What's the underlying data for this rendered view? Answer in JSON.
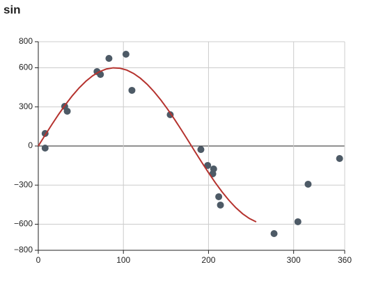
{
  "chart_data": {
    "type": "scatter",
    "title": "sin",
    "xlim": [
      0,
      360
    ],
    "xticks": [
      0,
      100,
      200,
      300,
      360
    ],
    "ylim": [
      -800,
      800
    ],
    "yticks": [
      {
        "value": -800,
        "label": "−800"
      },
      {
        "value": -600,
        "label": "−600"
      },
      {
        "value": -300,
        "label": "−300"
      },
      0,
      300,
      600,
      800
    ],
    "grid": true,
    "series": [
      {
        "type": "scatter",
        "color": "#4d5a66",
        "x": [
          8,
          8,
          31,
          34,
          69,
          73,
          83,
          103,
          110,
          155,
          191,
          199,
          205,
          206,
          212,
          214,
          277,
          305,
          317,
          354
        ],
        "values": [
          96,
          -16,
          304,
          267,
          571,
          549,
          672,
          704,
          427,
          240,
          -27,
          -149,
          -213,
          -176,
          -389,
          -453,
          -672,
          -581,
          -293,
          -96
        ]
      },
      {
        "type": "line",
        "color": "#b5322e",
        "x": [
          0,
          8,
          16,
          24,
          32,
          40,
          48,
          56,
          64,
          72,
          80,
          88,
          96,
          104,
          112,
          120,
          128,
          136,
          144,
          152,
          160,
          168,
          176,
          184,
          192,
          200,
          208,
          216,
          224,
          232,
          240,
          248,
          256
        ],
        "values": [
          0,
          83.5,
          165.4,
          244.0,
          317.9,
          385.7,
          445.9,
          497.4,
          539.3,
          570.6,
          590.9,
          599.6,
          596.7,
          582.2,
          556.3,
          519.6,
          472.8,
          416.8,
          352.7,
          281.7,
          205.2,
          124.7,
          41.9,
          -41.9,
          -124.7,
          -205.2,
          -281.7,
          -352.7,
          -416.8,
          -472.8,
          -519.6,
          -556.3,
          -582.2
        ]
      }
    ]
  }
}
